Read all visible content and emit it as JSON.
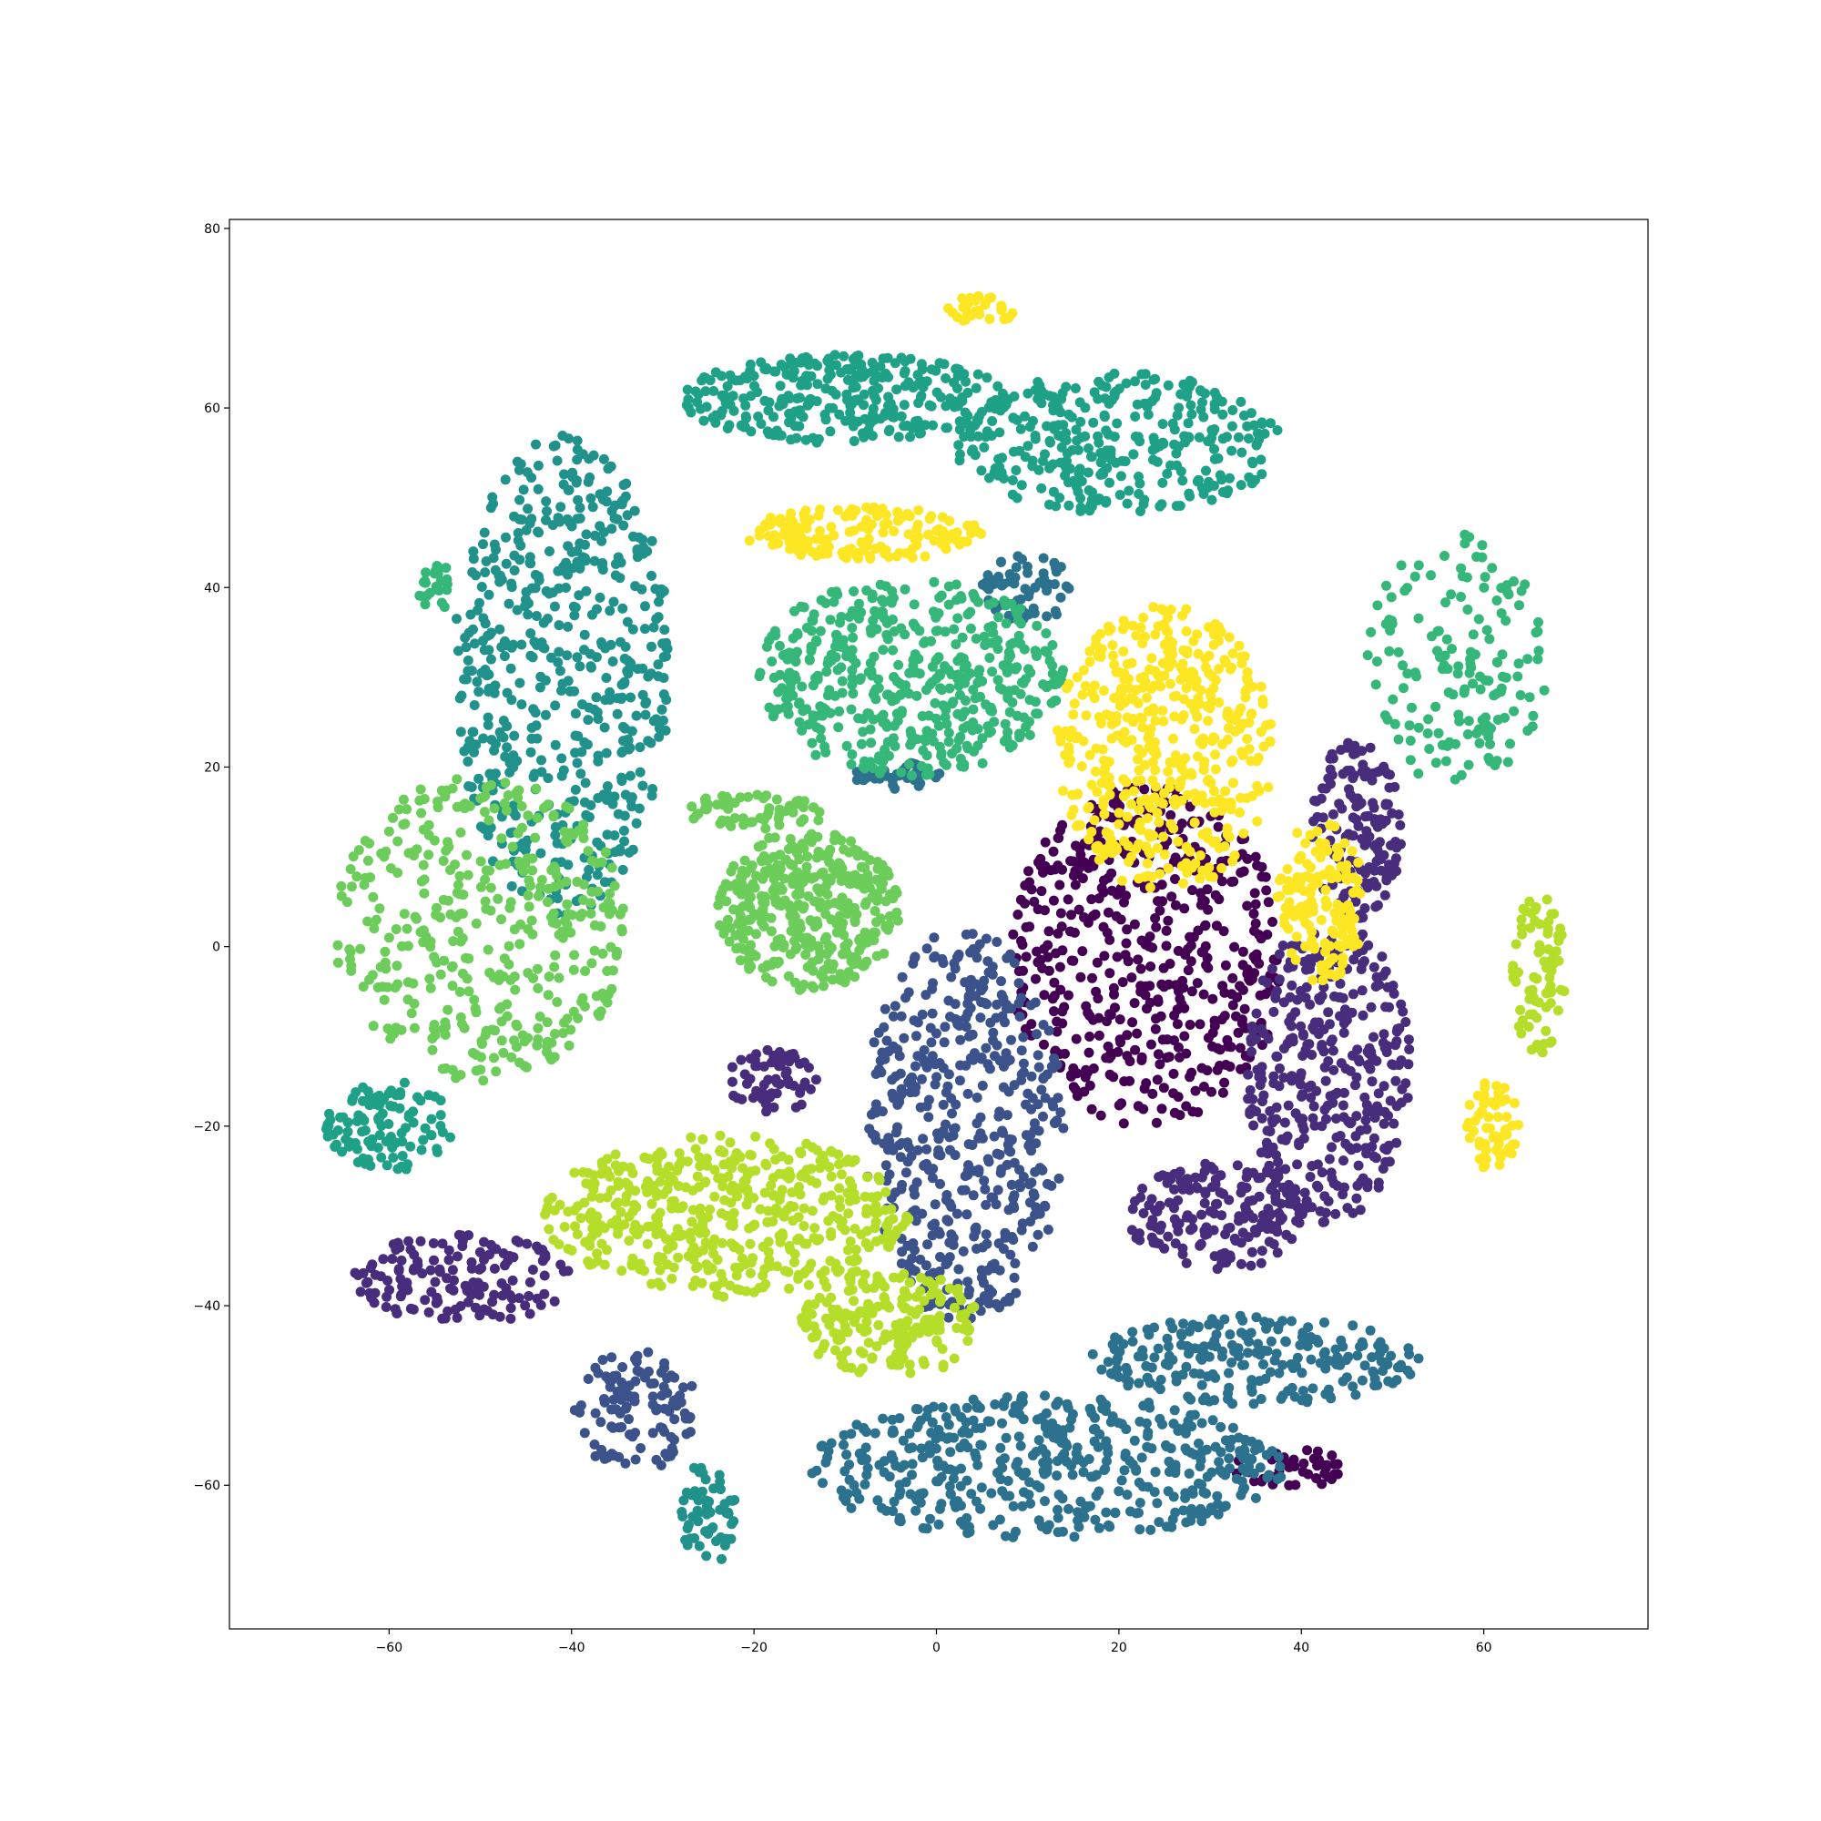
{
  "chart_data": {
    "type": "scatter",
    "title": "",
    "xlabel": "",
    "ylabel": "",
    "xlim": [
      -77.5,
      78
    ],
    "ylim": [
      -76,
      81
    ],
    "x_ticks": [
      -60,
      -40,
      -20,
      0,
      20,
      40,
      60
    ],
    "y_ticks": [
      -60,
      -40,
      -20,
      0,
      20,
      40,
      60,
      80
    ],
    "grid": false,
    "legend": "none",
    "colormap": "viridis",
    "clusters": [
      {
        "cx": 23,
        "cy": -1,
        "rx": 15,
        "ry": 19,
        "color": "#440154",
        "count": 520
      },
      {
        "cx": 38.5,
        "cy": -58,
        "rx": 6,
        "ry": 2.5,
        "color": "#440154",
        "count": 50
      },
      {
        "cx": 43,
        "cy": -14,
        "rx": 9,
        "ry": 17,
        "color": "#472d7b",
        "count": 350
      },
      {
        "cx": 31,
        "cy": -30,
        "rx": 10,
        "ry": 6,
        "color": "#472d7b",
        "count": 180
      },
      {
        "cx": 46,
        "cy": 13,
        "rx": 5,
        "ry": 10,
        "color": "#472d7b",
        "count": 150
      },
      {
        "cx": -18,
        "cy": -15,
        "rx": 5,
        "ry": 3.5,
        "color": "#472d7b",
        "count": 60
      },
      {
        "cx": -52,
        "cy": -37,
        "rx": 12,
        "ry": 5,
        "color": "#472d7b",
        "count": 150
      },
      {
        "cx": -33,
        "cy": -52,
        "rx": 7,
        "ry": 7,
        "color": "#3b528b",
        "count": 110
      },
      {
        "cx": 3,
        "cy": -20,
        "rx": 11,
        "ry": 22,
        "color": "#3b528b",
        "count": 480
      },
      {
        "cx": 12,
        "cy": -58,
        "rx": 26,
        "ry": 8,
        "color": "#2c728e",
        "count": 480
      },
      {
        "cx": 35,
        "cy": -46,
        "rx": 18,
        "ry": 5,
        "color": "#2c728e",
        "count": 230
      },
      {
        "cx": 10,
        "cy": 40,
        "rx": 5,
        "ry": 4,
        "color": "#2c728e",
        "count": 60
      },
      {
        "cx": -4,
        "cy": 19,
        "rx": 5,
        "ry": 1.5,
        "color": "#2c728e",
        "count": 40
      },
      {
        "cx": -41,
        "cy": 30,
        "rx": 12,
        "ry": 27,
        "color": "#21918c",
        "count": 550
      },
      {
        "cx": -25,
        "cy": -63,
        "rx": 3,
        "ry": 6,
        "color": "#21918c",
        "count": 60
      },
      {
        "cx": -10,
        "cy": 61,
        "rx": 18,
        "ry": 5,
        "color": "#1fa188",
        "count": 300
      },
      {
        "cx": 20,
        "cy": 56,
        "rx": 18,
        "ry": 8,
        "color": "#1fa188",
        "count": 330
      },
      {
        "cx": -60,
        "cy": -20,
        "rx": 7,
        "ry": 5,
        "color": "#1fa188",
        "count": 110
      },
      {
        "cx": -3,
        "cy": 30,
        "rx": 17,
        "ry": 11,
        "color": "#35b779",
        "count": 480
      },
      {
        "cx": 57,
        "cy": 32,
        "rx": 10,
        "ry": 14,
        "color": "#35b779",
        "count": 160
      },
      {
        "cx": -55,
        "cy": 40,
        "rx": 2,
        "ry": 3,
        "color": "#35b779",
        "count": 25
      },
      {
        "cx": -50,
        "cy": 2,
        "rx": 16,
        "ry": 17,
        "color": "#6ccd5a",
        "count": 400
      },
      {
        "cx": -14,
        "cy": 4,
        "rx": 10,
        "ry": 9,
        "color": "#6ccd5a",
        "count": 380
      },
      {
        "cx": -20,
        "cy": 15,
        "rx": 8,
        "ry": 2,
        "color": "#6ccd5a",
        "count": 60
      },
      {
        "cx": -23,
        "cy": -30,
        "rx": 20,
        "ry": 9,
        "color": "#b5de2b",
        "count": 480
      },
      {
        "cx": -5,
        "cy": -42,
        "rx": 10,
        "ry": 6,
        "color": "#b5de2b",
        "count": 200
      },
      {
        "cx": 66,
        "cy": -3,
        "rx": 3,
        "ry": 9,
        "color": "#b5de2b",
        "count": 80
      },
      {
        "cx": 25,
        "cy": 22,
        "rx": 12,
        "ry": 16,
        "color": "#fde725",
        "count": 460
      },
      {
        "cx": 42,
        "cy": 5,
        "rx": 5,
        "ry": 9,
        "color": "#fde725",
        "count": 140
      },
      {
        "cx": 61,
        "cy": -20,
        "rx": 3,
        "ry": 5,
        "color": "#fde725",
        "count": 60
      },
      {
        "cx": -8,
        "cy": 46,
        "rx": 13,
        "ry": 3,
        "color": "#fde725",
        "count": 160
      },
      {
        "cx": 5,
        "cy": 71,
        "rx": 4,
        "ry": 1.5,
        "color": "#fde725",
        "count": 30
      }
    ]
  }
}
